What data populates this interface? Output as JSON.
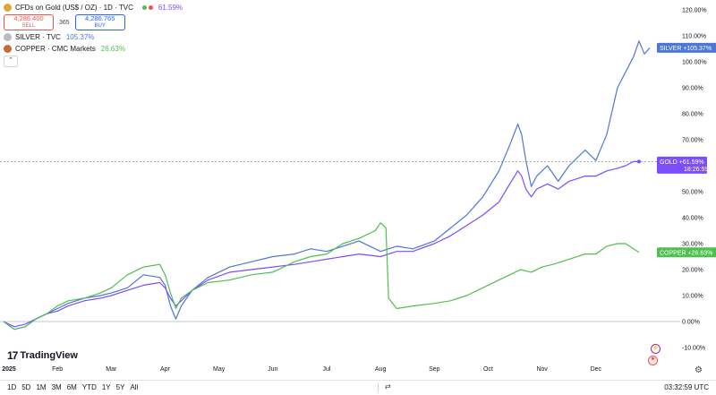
{
  "legend": {
    "main": {
      "title": "CFDs on Gold (US$ / OZ) · 1D · TVC",
      "change": "61.59%",
      "color": "#7c4dff"
    },
    "sell": {
      "price": "4,286.400",
      "label": "SELL"
    },
    "buy": {
      "price": "4,286.765",
      "label": "BUY"
    },
    "spread": "365",
    "silver": {
      "title": "SILVER · TVC",
      "change": "105.37%",
      "color": "#4c77d6"
    },
    "copper": {
      "title": "COPPER · CMC Markets",
      "change": "26.63%",
      "color": "#4fbf4f"
    },
    "collapse_icon": "chevron-up-icon"
  },
  "price_tags": {
    "silver": {
      "name": "SILVER",
      "value": "+105.37%"
    },
    "gold": {
      "name": "GOLD",
      "value": "+61.59%",
      "countdown": "18:26:59"
    },
    "copper": {
      "name": "COPPER",
      "value": "+26.63%"
    }
  },
  "branding": {
    "name": "TradingView",
    "mark": "17"
  },
  "timeframes": [
    "1D",
    "5D",
    "1M",
    "3M",
    "6M",
    "YTD",
    "1Y",
    "5Y",
    "All"
  ],
  "clock": "03:32:59 UTC",
  "chart_data": {
    "type": "line",
    "x_labels": [
      "2025",
      "Feb",
      "Mar",
      "Apr",
      "May",
      "Jun",
      "Jul",
      "Aug",
      "Sep",
      "Oct",
      "Nov",
      "Dec"
    ],
    "y_ticks": [
      "120.00%",
      "110.00%",
      "100.00%",
      "90.00%",
      "80.00%",
      "70.00%",
      "60.00%",
      "50.00%",
      "40.00%",
      "30.00%",
      "20.00%",
      "10.00%",
      "0.00%",
      "-10.00%"
    ],
    "ylim": [
      -10,
      120
    ],
    "y_unit": "%",
    "x_domain": [
      0,
      12
    ],
    "series": [
      {
        "name": "SILVER",
        "color": "#4c77d6",
        "points": [
          [
            0,
            0
          ],
          [
            0.2,
            -3
          ],
          [
            0.4,
            -2
          ],
          [
            0.6,
            1
          ],
          [
            0.8,
            3
          ],
          [
            1.0,
            5
          ],
          [
            1.2,
            7
          ],
          [
            1.5,
            9
          ],
          [
            1.8,
            10
          ],
          [
            2.0,
            11
          ],
          [
            2.3,
            13
          ],
          [
            2.6,
            18
          ],
          [
            2.9,
            17
          ],
          [
            3.0,
            14
          ],
          [
            3.1,
            6
          ],
          [
            3.2,
            1
          ],
          [
            3.3,
            6
          ],
          [
            3.5,
            12
          ],
          [
            3.8,
            17
          ],
          [
            4.2,
            21
          ],
          [
            4.6,
            23
          ],
          [
            5.0,
            25
          ],
          [
            5.4,
            26
          ],
          [
            5.7,
            28
          ],
          [
            6.0,
            27
          ],
          [
            6.3,
            29
          ],
          [
            6.6,
            31
          ],
          [
            7.0,
            27
          ],
          [
            7.3,
            29
          ],
          [
            7.6,
            28
          ],
          [
            8.0,
            31
          ],
          [
            8.3,
            36
          ],
          [
            8.6,
            41
          ],
          [
            8.9,
            48
          ],
          [
            9.2,
            58
          ],
          [
            9.4,
            68
          ],
          [
            9.55,
            76
          ],
          [
            9.62,
            72
          ],
          [
            9.7,
            62
          ],
          [
            9.8,
            52
          ],
          [
            9.9,
            56
          ],
          [
            10.1,
            60
          ],
          [
            10.3,
            54
          ],
          [
            10.5,
            60
          ],
          [
            10.8,
            66
          ],
          [
            11.0,
            62
          ],
          [
            11.2,
            72
          ],
          [
            11.4,
            90
          ],
          [
            11.55,
            96
          ],
          [
            11.7,
            102
          ],
          [
            11.8,
            108
          ],
          [
            11.9,
            103
          ],
          [
            12.0,
            105.37
          ]
        ]
      },
      {
        "name": "GOLD",
        "color": "#7c4dff",
        "points": [
          [
            0,
            0
          ],
          [
            0.2,
            -2
          ],
          [
            0.4,
            -1
          ],
          [
            0.6,
            1
          ],
          [
            0.8,
            3
          ],
          [
            1.0,
            4
          ],
          [
            1.2,
            6
          ],
          [
            1.5,
            8
          ],
          [
            1.8,
            9
          ],
          [
            2.0,
            10
          ],
          [
            2.3,
            12
          ],
          [
            2.6,
            14
          ],
          [
            2.9,
            15
          ],
          [
            3.0,
            13
          ],
          [
            3.1,
            9
          ],
          [
            3.2,
            6
          ],
          [
            3.3,
            8
          ],
          [
            3.5,
            12
          ],
          [
            3.8,
            16
          ],
          [
            4.2,
            19
          ],
          [
            4.6,
            20
          ],
          [
            5.0,
            21
          ],
          [
            5.4,
            22
          ],
          [
            5.7,
            23
          ],
          [
            6.0,
            24
          ],
          [
            6.3,
            25
          ],
          [
            6.6,
            26
          ],
          [
            7.0,
            25
          ],
          [
            7.3,
            27
          ],
          [
            7.6,
            27
          ],
          [
            8.0,
            30
          ],
          [
            8.3,
            33
          ],
          [
            8.6,
            37
          ],
          [
            8.9,
            41
          ],
          [
            9.2,
            46
          ],
          [
            9.4,
            53
          ],
          [
            9.55,
            58
          ],
          [
            9.62,
            56
          ],
          [
            9.7,
            51
          ],
          [
            9.8,
            48
          ],
          [
            9.9,
            51
          ],
          [
            10.1,
            53
          ],
          [
            10.3,
            51
          ],
          [
            10.5,
            54
          ],
          [
            10.8,
            56
          ],
          [
            11.0,
            56
          ],
          [
            11.2,
            58
          ],
          [
            11.4,
            59
          ],
          [
            11.55,
            60
          ],
          [
            11.7,
            61.59
          ],
          [
            11.8,
            61.59
          ]
        ]
      },
      {
        "name": "COPPER",
        "color": "#4fbf4f",
        "points": [
          [
            0,
            0
          ],
          [
            0.2,
            -3
          ],
          [
            0.4,
            -2
          ],
          [
            0.6,
            1
          ],
          [
            0.8,
            3
          ],
          [
            1.0,
            6
          ],
          [
            1.2,
            8
          ],
          [
            1.5,
            9
          ],
          [
            1.8,
            11
          ],
          [
            2.0,
            13
          ],
          [
            2.3,
            18
          ],
          [
            2.6,
            21
          ],
          [
            2.9,
            22
          ],
          [
            3.0,
            18
          ],
          [
            3.1,
            11
          ],
          [
            3.2,
            5
          ],
          [
            3.3,
            9
          ],
          [
            3.5,
            12
          ],
          [
            3.8,
            15
          ],
          [
            4.2,
            16
          ],
          [
            4.6,
            18
          ],
          [
            5.0,
            19
          ],
          [
            5.4,
            23
          ],
          [
            5.7,
            25
          ],
          [
            6.0,
            26
          ],
          [
            6.3,
            30
          ],
          [
            6.6,
            32
          ],
          [
            6.9,
            35
          ],
          [
            7.0,
            38
          ],
          [
            7.1,
            36
          ],
          [
            7.15,
            9
          ],
          [
            7.3,
            5
          ],
          [
            7.6,
            6
          ],
          [
            8.0,
            7
          ],
          [
            8.3,
            8
          ],
          [
            8.6,
            10
          ],
          [
            8.9,
            13
          ],
          [
            9.2,
            16
          ],
          [
            9.4,
            18
          ],
          [
            9.6,
            20
          ],
          [
            9.8,
            19
          ],
          [
            10.0,
            21
          ],
          [
            10.2,
            22
          ],
          [
            10.5,
            24
          ],
          [
            10.8,
            26
          ],
          [
            11.0,
            26
          ],
          [
            11.2,
            29
          ],
          [
            11.4,
            30
          ],
          [
            11.55,
            30
          ],
          [
            11.7,
            28
          ],
          [
            11.8,
            26.63
          ]
        ]
      }
    ]
  }
}
